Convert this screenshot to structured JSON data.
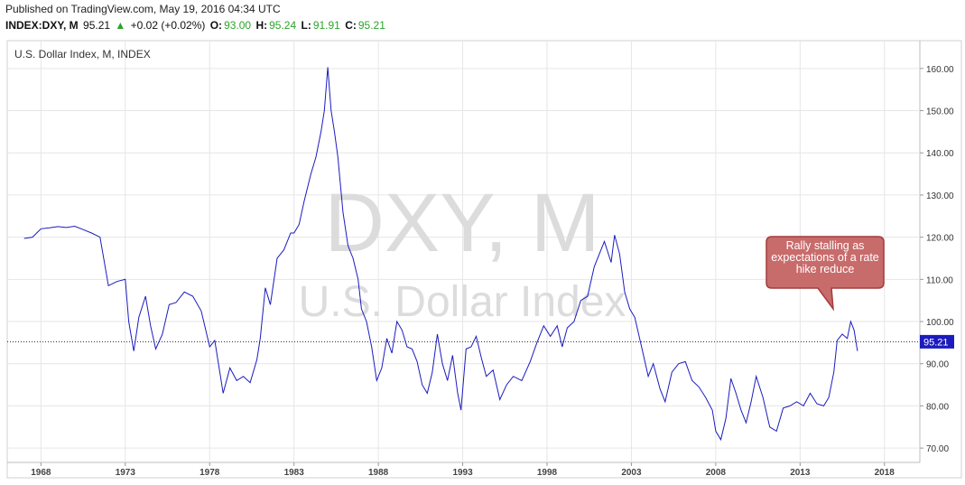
{
  "header": {
    "published": "Published on TradingView.com, May 19, 2016 04:34 UTC",
    "symbol": "INDEX:DXY, M",
    "last": "95.21",
    "change": "+0.02 (+0.02%)",
    "open_label": "O:",
    "open": "93.00",
    "high_label": "H:",
    "high": "95.24",
    "low_label": "L:",
    "low": "91.91",
    "close_label": "C:",
    "close": "95.21"
  },
  "colors": {
    "series": "#1b1bbf",
    "up": "#2aa52a",
    "price_tag": "#1b1bbf",
    "callout_fill": "#c86b6b",
    "callout_stroke": "#a33c3c",
    "grid": "#e6e6e6",
    "watermark": "#dcdcdc"
  },
  "chart_data": {
    "type": "line",
    "title": "U.S. Dollar Index, M, INDEX",
    "watermark": [
      "DXY, M",
      "U.S. Dollar Index"
    ],
    "x_ticks": [
      "1968",
      "1973",
      "1978",
      "1983",
      "1988",
      "1993",
      "1998",
      "2003",
      "2008",
      "2013",
      "2018"
    ],
    "y_ticks": [
      "70.00",
      "80.00",
      "90.00",
      "100.00",
      "110.00",
      "120.00",
      "130.00",
      "140.00",
      "150.00",
      "160.00"
    ],
    "xlim": [
      1966.0,
      2020.1
    ],
    "ylim": [
      66.6,
      166.6
    ],
    "grid": true,
    "y_axis_side": "right",
    "last_value": 95.21,
    "last_value_label": "95.21",
    "annotation": "Rally stalling as expectations of a rate hike reduce",
    "series": [
      {
        "x": [
          1967.0,
          1967.5,
          1968.0,
          1968.5,
          1969.0,
          1969.5,
          1970.0,
          1970.5,
          1971.0,
          1971.5,
          1972.0,
          1972.5,
          1973.0,
          1973.2,
          1973.5,
          1973.8,
          1974.2,
          1974.5,
          1974.8,
          1975.2,
          1975.6,
          1976.0,
          1976.5,
          1977.0,
          1977.5,
          1978.0,
          1978.3,
          1978.6,
          1978.8,
          1979.2,
          1979.6,
          1980.0,
          1980.4,
          1980.8,
          1981.0,
          1981.3,
          1981.6,
          1982.0,
          1982.4,
          1982.8,
          1983.0,
          1983.3,
          1983.6,
          1984.0,
          1984.3,
          1984.6,
          1984.8,
          1985.0,
          1985.2,
          1985.4,
          1985.6,
          1985.9,
          1986.2,
          1986.5,
          1986.8,
          1987.0,
          1987.3,
          1987.6,
          1987.9,
          1988.2,
          1988.5,
          1988.8,
          1989.1,
          1989.4,
          1989.7,
          1990.0,
          1990.3,
          1990.6,
          1990.9,
          1991.2,
          1991.5,
          1991.8,
          1992.1,
          1992.4,
          1992.7,
          1992.9,
          1993.2,
          1993.5,
          1993.8,
          1994.1,
          1994.4,
          1994.8,
          1995.2,
          1995.6,
          1996.0,
          1996.5,
          1997.0,
          1997.4,
          1997.8,
          1998.2,
          1998.6,
          1998.9,
          1999.2,
          1999.6,
          2000.0,
          2000.4,
          2000.8,
          2001.1,
          2001.4,
          2001.8,
          2002.0,
          2002.3,
          2002.6,
          2002.9,
          2003.2,
          2003.6,
          2004.0,
          2004.3,
          2004.7,
          2005.0,
          2005.4,
          2005.8,
          2006.2,
          2006.6,
          2007.0,
          2007.4,
          2007.8,
          2008.0,
          2008.3,
          2008.6,
          2008.9,
          2009.2,
          2009.5,
          2009.8,
          2010.1,
          2010.4,
          2010.8,
          2011.2,
          2011.6,
          2012.0,
          2012.4,
          2012.8,
          2013.2,
          2013.6,
          2014.0,
          2014.4,
          2014.7,
          2015.0,
          2015.2,
          2015.5,
          2015.8,
          2016.0,
          2016.2,
          2016.4
        ],
        "values": [
          119.7,
          120.0,
          122.0,
          122.2,
          122.5,
          122.3,
          122.6,
          121.8,
          121.0,
          120.0,
          108.5,
          109.5,
          110.0,
          100.0,
          93.0,
          101.0,
          106.0,
          99.0,
          93.5,
          97.0,
          104.0,
          104.5,
          107.0,
          106.0,
          102.5,
          94.0,
          95.5,
          88.0,
          83.0,
          89.0,
          86.0,
          87.0,
          85.5,
          91.0,
          96.0,
          108.0,
          104.0,
          115.0,
          117.0,
          121.0,
          121.0,
          123.0,
          128.5,
          135.0,
          139.0,
          145.0,
          150.0,
          160.3,
          150.0,
          145.0,
          139.0,
          126.0,
          118.0,
          115.0,
          110.0,
          103.0,
          100.0,
          94.0,
          86.0,
          89.0,
          96.0,
          92.5,
          100.0,
          98.0,
          94.0,
          93.5,
          90.5,
          85.0,
          83.0,
          88.0,
          97.0,
          90.0,
          86.0,
          92.0,
          83.0,
          79.0,
          93.5,
          94.0,
          96.5,
          91.5,
          87.0,
          88.5,
          81.5,
          85.0,
          87.0,
          86.0,
          90.5,
          95.0,
          99.0,
          96.5,
          99.0,
          94.0,
          98.5,
          100.0,
          105.0,
          106.0,
          113.0,
          116.0,
          119.0,
          114.0,
          120.5,
          116.0,
          107.0,
          103.0,
          101.0,
          94.0,
          87.0,
          90.0,
          84.0,
          81.0,
          88.0,
          90.0,
          90.5,
          86.0,
          84.5,
          82.0,
          79.0,
          74.0,
          72.0,
          77.0,
          86.5,
          83.0,
          79.0,
          76.0,
          81.0,
          87.0,
          82.0,
          75.0,
          74.0,
          79.5,
          80.0,
          81.0,
          80.0,
          83.0,
          80.5,
          80.0,
          82.0,
          88.0,
          95.5,
          97.0,
          96.0,
          100.0,
          98.0,
          93.0
        ]
      }
    ]
  }
}
